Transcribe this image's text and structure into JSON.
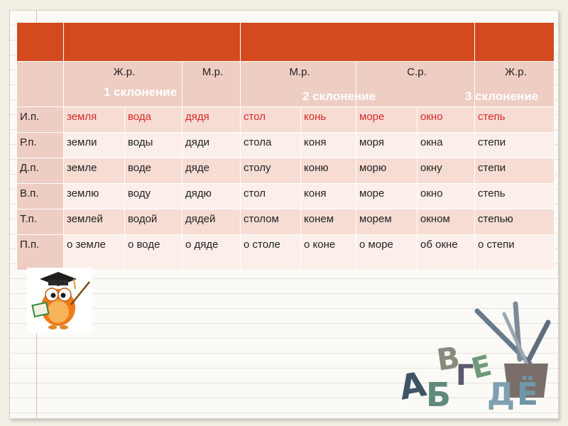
{
  "table": {
    "genders": [
      "Ж.р.",
      "М.р.",
      "М.р.",
      "С.р.",
      "Ж.р."
    ],
    "rows": [
      {
        "case": "И.п.",
        "cells": [
          "земля",
          "вода",
          "дядя",
          "стол",
          "конь",
          "море",
          "окно",
          "степь"
        ]
      },
      {
        "case": "Р.п.",
        "cells": [
          "земли",
          "воды",
          "дяди",
          "стола",
          "коня",
          "моря",
          "окна",
          "степи"
        ]
      },
      {
        "case": "Д.п.",
        "cells": [
          "земле",
          "воде",
          "дяде",
          "столу",
          "коню",
          "морю",
          "окну",
          "степи"
        ]
      },
      {
        "case": "В.п.",
        "cells": [
          "землю",
          "воду",
          "дядю",
          "стол",
          "коня",
          "море",
          "окно",
          "степь"
        ]
      },
      {
        "case": "Т.п.",
        "cells": [
          "землей",
          "водой",
          "дядей",
          "столом",
          "конем",
          "морем",
          "окном",
          "степью"
        ]
      },
      {
        "case": "П.п.",
        "cells": [
          "о земле",
          "о воде",
          "о дяде",
          "о столе",
          "о коне",
          "о море",
          "об окне",
          "о степи"
        ]
      }
    ]
  },
  "declensions": {
    "first": "1 склонение",
    "second": "2 склонение",
    "third": "3 склонение"
  },
  "colors": {
    "header": "#d24a1e",
    "row_odd": "#f6dcd3",
    "row_even": "#fcefea",
    "highlight_text": "#d62a2a"
  },
  "decorations": {
    "owl": "owl-teacher-icon",
    "letters": [
      "А",
      "Б",
      "В",
      "Г",
      "Е",
      "Д",
      "Ё"
    ]
  }
}
